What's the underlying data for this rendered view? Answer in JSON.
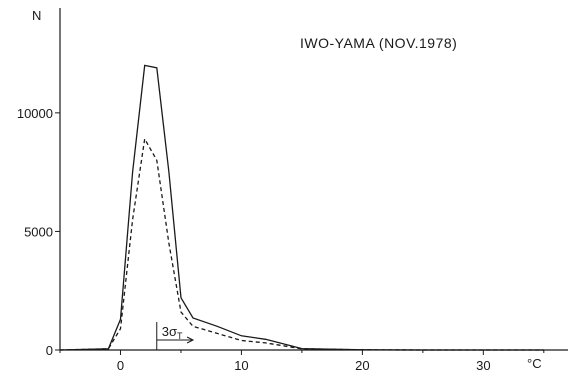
{
  "chart_data": {
    "type": "line",
    "title": "IWO-YAMA (NOV.1978)",
    "ylabel": "N",
    "xunit": "°C",
    "xlim": [
      -5,
      37
    ],
    "ylim": [
      0,
      14000
    ],
    "xticks": [
      0,
      10,
      20,
      30
    ],
    "xminor_ticks": [
      -5,
      5,
      15,
      25,
      35
    ],
    "yticks": [
      0,
      5000,
      10000
    ],
    "series": [
      {
        "style": "solid",
        "x": [
          -5,
          -1,
          0,
          1,
          2,
          3,
          4,
          5,
          6,
          8,
          10,
          12,
          15,
          20,
          25,
          30,
          35
        ],
        "y": [
          0,
          50,
          1300,
          7500,
          12000,
          11900,
          7500,
          2200,
          1350,
          1000,
          600,
          450,
          60,
          10,
          0,
          0,
          0
        ]
      },
      {
        "style": "dashed",
        "x": [
          -5,
          -1,
          0,
          1,
          2,
          3,
          4,
          5,
          6,
          8,
          10,
          12,
          15,
          20,
          25,
          30,
          35
        ],
        "y": [
          0,
          50,
          900,
          5500,
          8900,
          8000,
          4500,
          1600,
          1000,
          700,
          400,
          300,
          50,
          10,
          0,
          0,
          0
        ]
      }
    ],
    "annotation": {
      "text": "3σ",
      "subscript": "T",
      "x_start": 3,
      "x_end": 6
    }
  }
}
